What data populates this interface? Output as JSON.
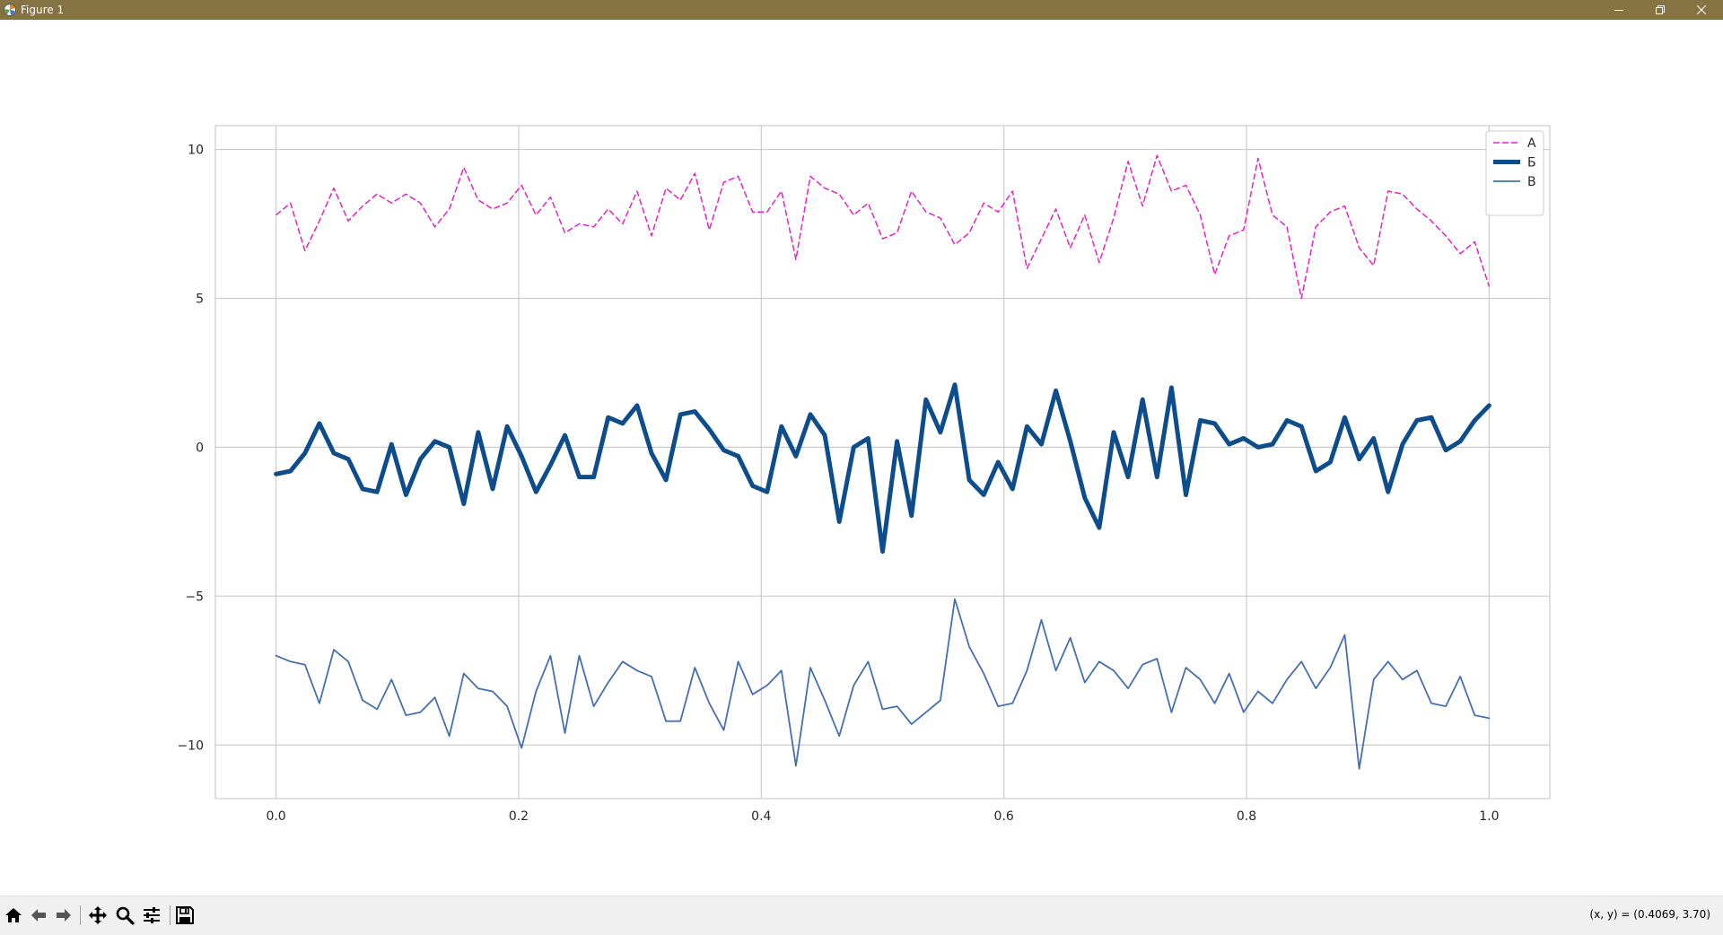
{
  "window": {
    "title": "Figure 1",
    "minimize_icon": "minimize-icon",
    "restore_icon": "restore-icon",
    "close_icon": "close-icon"
  },
  "toolbar": {
    "buttons": [
      "home-icon",
      "back-arrow-icon",
      "forward-arrow-icon",
      "pan-icon",
      "zoom-icon",
      "configure-subplots-icon",
      "save-icon"
    ],
    "coords": "(x, y) = (0.4069, 3.70)"
  },
  "chart_data": {
    "type": "line",
    "title": "",
    "xlabel": "",
    "ylabel": "",
    "xlim": [
      -0.05,
      1.05
    ],
    "ylim": [
      -11.8,
      10.8
    ],
    "xticks": [
      0.0,
      0.2,
      0.4,
      0.6,
      0.8,
      1.0
    ],
    "xtick_labels": [
      "0.0",
      "0.2",
      "0.4",
      "0.6",
      "0.8",
      "1.0"
    ],
    "yticks": [
      10,
      5,
      0,
      -5,
      -10
    ],
    "ytick_labels": [
      "10",
      "5",
      "0",
      "−5",
      "−10"
    ],
    "grid": true,
    "legend_position": "top-right",
    "x": {
      "start": 0.0,
      "end": 1.0,
      "count": 85
    },
    "series": [
      {
        "name": "А",
        "color": "#e423c5",
        "style": "dashed",
        "width": 1.5,
        "values": [
          7.8,
          8.2,
          6.6,
          7.6,
          8.7,
          7.6,
          8.1,
          8.5,
          8.2,
          8.5,
          8.2,
          7.4,
          8.0,
          9.4,
          8.3,
          8.0,
          8.2,
          8.8,
          7.8,
          8.4,
          7.2,
          7.5,
          7.4,
          8.0,
          7.5,
          8.6,
          7.1,
          8.7,
          8.3,
          9.2,
          7.3,
          8.9,
          9.1,
          7.9,
          7.9,
          8.6,
          6.3,
          9.1,
          8.7,
          8.5,
          7.8,
          8.2,
          7.0,
          7.2,
          8.6,
          7.9,
          7.7,
          6.8,
          7.2,
          8.2,
          7.9,
          8.6,
          6.0,
          7.0,
          8.0,
          6.7,
          7.8,
          6.2,
          7.7,
          9.6,
          8.1,
          9.8,
          8.6,
          8.8,
          7.8,
          5.8,
          7.1,
          7.3,
          9.7,
          7.8,
          7.4,
          5.0,
          7.4,
          7.9,
          8.1,
          6.7,
          6.1,
          8.6,
          8.5,
          8.0,
          7.6,
          7.1,
          6.5,
          6.9,
          5.4
        ]
      },
      {
        "name": "Б",
        "color": "#0e4d8c",
        "style": "solid",
        "width": 5,
        "values": [
          -0.9,
          -0.8,
          -0.2,
          0.8,
          -0.2,
          -0.4,
          -1.4,
          -1.5,
          0.1,
          -1.6,
          -0.4,
          0.2,
          0.0,
          -1.9,
          0.5,
          -1.4,
          0.7,
          -0.3,
          -1.5,
          -0.6,
          0.4,
          -1.0,
          -1.0,
          1.0,
          0.8,
          1.4,
          -0.2,
          -1.1,
          1.1,
          1.2,
          0.6,
          -0.1,
          -0.3,
          -1.3,
          -1.5,
          0.7,
          -0.3,
          1.1,
          0.4,
          -2.5,
          0.0,
          0.3,
          -3.5,
          0.2,
          -2.3,
          1.6,
          0.5,
          2.1,
          -1.1,
          -1.6,
          -0.5,
          -1.4,
          0.7,
          0.1,
          1.9,
          0.2,
          -1.7,
          -2.7,
          0.5,
          -1.0,
          1.6,
          -1.0,
          2.0,
          -1.6,
          0.9,
          0.8,
          0.1,
          0.3,
          0.0,
          0.1,
          0.9,
          0.7,
          -0.8,
          -0.5,
          1.0,
          -0.4,
          0.3,
          -1.5,
          0.1,
          0.9,
          1.0,
          -0.1,
          0.2,
          0.9,
          1.4
        ]
      },
      {
        "name": "В",
        "color": "#4470b0",
        "style": "solid",
        "width": 1.8,
        "values": [
          -7.0,
          -7.2,
          -7.3,
          -8.6,
          -6.8,
          -7.2,
          -8.5,
          -8.8,
          -7.8,
          -9.0,
          -8.9,
          -8.4,
          -9.7,
          -7.6,
          -8.1,
          -8.2,
          -8.7,
          -10.1,
          -8.2,
          -7.0,
          -9.6,
          -7.0,
          -8.7,
          -7.9,
          -7.2,
          -7.5,
          -7.7,
          -9.2,
          -9.2,
          -7.4,
          -8.6,
          -9.5,
          -7.2,
          -8.3,
          -8.0,
          -7.5,
          -10.7,
          -7.4,
          -8.5,
          -9.7,
          -8.0,
          -7.2,
          -8.8,
          -8.7,
          -9.3,
          -8.9,
          -8.5,
          -5.1,
          -6.7,
          -7.6,
          -8.7,
          -8.6,
          -7.5,
          -5.8,
          -7.5,
          -6.4,
          -7.9,
          -7.2,
          -7.5,
          -8.1,
          -7.3,
          -7.1,
          -8.9,
          -7.4,
          -7.8,
          -8.6,
          -7.6,
          -8.9,
          -8.2,
          -8.6,
          -7.8,
          -7.2,
          -8.1,
          -7.4,
          -6.3,
          -10.8,
          -7.8,
          -7.2,
          -7.8,
          -7.5,
          -8.6,
          -8.7,
          -7.7,
          -9.0,
          -9.1
        ]
      }
    ]
  }
}
